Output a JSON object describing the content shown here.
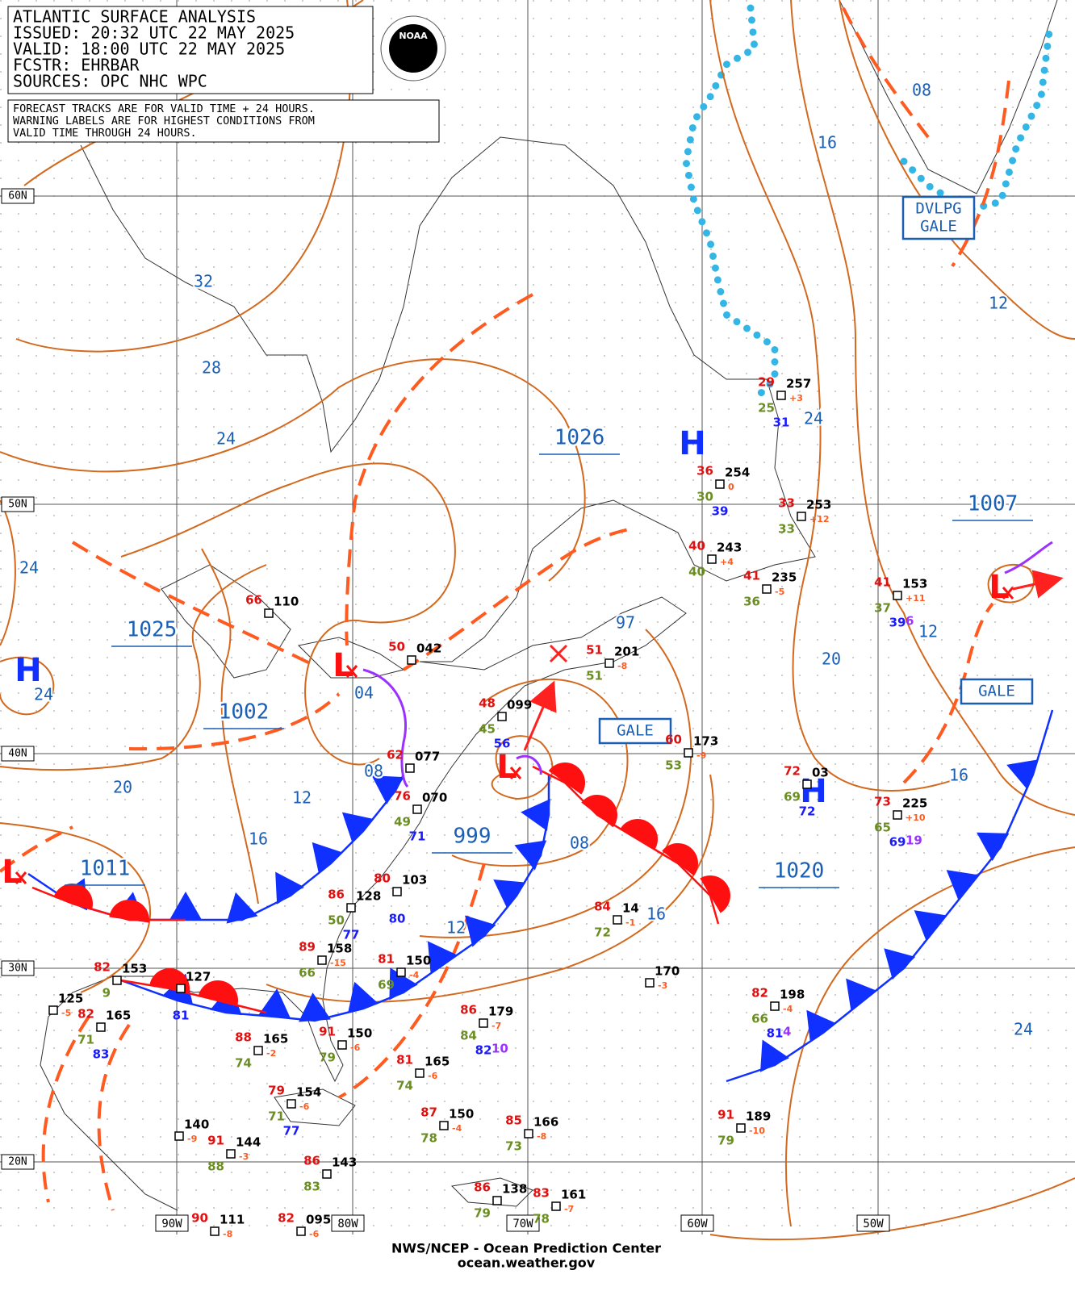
{
  "header": {
    "lines": [
      "ATLANTIC SURFACE ANALYSIS",
      "ISSUED: 20:32 UTC 22 MAY 2025",
      "VALID:  18:00 UTC 22 MAY 2025",
      "FCSTR:  EHRBAR",
      "SOURCES: OPC NHC WPC"
    ],
    "logo": "NOAA"
  },
  "notice": [
    "FORECAST TRACKS ARE FOR VALID TIME + 24 HOURS.",
    "WARNING LABELS ARE FOR HIGHEST CONDITIONS FROM",
    "VALID TIME THROUGH 24 HOURS."
  ],
  "lat_labels": [
    "60N",
    "50N",
    "40N",
    "30N",
    "20N"
  ],
  "lon_labels": [
    "90W",
    "80W",
    "70W",
    "60W",
    "50W"
  ],
  "isobar_labels": [
    "08",
    "16",
    "12",
    "32",
    "28",
    "24",
    "24",
    "24",
    "12",
    "20",
    "24",
    "04",
    "97",
    "20",
    "12",
    "08",
    "16",
    "08",
    "16",
    "16",
    "12",
    "24"
  ],
  "central_pressures": [
    "1026",
    "1007",
    "1025",
    "1002",
    "1011",
    "999",
    "1020"
  ],
  "centers": [
    "H",
    "H",
    "H",
    "L",
    "L",
    "L",
    "L"
  ],
  "warnings": [
    [
      "GALE"
    ],
    [
      "GALE"
    ],
    [
      "DVLPG",
      "GALE"
    ]
  ],
  "stations": [
    {
      "p": "257",
      "t": "29",
      "d": "25",
      "v": "31",
      "tend": "+3"
    },
    {
      "p": "254",
      "t": "36",
      "d": "30",
      "v": "39",
      "tend": "0"
    },
    {
      "p": "253",
      "t": "33",
      "d": "33",
      "tend": "+12"
    },
    {
      "p": "243",
      "t": "40",
      "d": "40",
      "tend": "+4"
    },
    {
      "p": "235",
      "t": "41",
      "d": "36",
      "tend": "-5"
    },
    {
      "p": "153",
      "t": "41",
      "d": "37",
      "v": "39",
      "x": "6",
      "tend": "+11"
    },
    {
      "p": "110",
      "t": "66"
    },
    {
      "p": "042",
      "t": "50"
    },
    {
      "p": "201",
      "t": "51",
      "d": "51",
      "tend": "-8"
    },
    {
      "p": "099",
      "t": "48",
      "d": "45",
      "v": "56"
    },
    {
      "p": "173",
      "t": "60",
      "d": "53",
      "tend": "-9"
    },
    {
      "p": "077",
      "t": "62"
    },
    {
      "p": "03",
      "t": "72",
      "d": "69",
      "v": "72"
    },
    {
      "p": "225",
      "t": "73",
      "d": "65",
      "v": "69",
      "x": "19",
      "tend": "+10"
    },
    {
      "p": "070",
      "t": "76",
      "d": "49",
      "v": "71"
    },
    {
      "p": "103",
      "t": "80",
      "v": "80"
    },
    {
      "p": "128",
      "t": "86",
      "d": "50",
      "v": "77"
    },
    {
      "p": "14",
      "t": "84",
      "d": "72",
      "tend": "-1"
    },
    {
      "p": "158",
      "t": "89",
      "d": "66",
      "tend": "-15"
    },
    {
      "p": "150",
      "t": "81",
      "d": "69",
      "tend": "-4"
    },
    {
      "p": "170",
      "tend": "-3"
    },
    {
      "p": "153",
      "t": "82",
      "d": "9"
    },
    {
      "p": "127",
      "v": "81"
    },
    {
      "p": "125",
      "tend": "-5"
    },
    {
      "p": "198",
      "t": "82",
      "d": "66",
      "v": "81",
      "x": "4",
      "tend": "-4"
    },
    {
      "p": "165",
      "t": "82",
      "d": "71",
      "v": "83"
    },
    {
      "p": "179",
      "t": "86",
      "d": "84",
      "v": "82",
      "x": "10",
      "tend": "-7"
    },
    {
      "p": "165",
      "t": "88",
      "d": "74",
      "tend": "-2"
    },
    {
      "p": "150",
      "t": "91",
      "d": "79",
      "tend": "-6"
    },
    {
      "p": "165",
      "t": "81",
      "d": "74",
      "tend": "-6"
    },
    {
      "p": "154",
      "t": "79",
      "d": "71",
      "v": "77",
      "tend": "-6"
    },
    {
      "p": "150",
      "t": "87",
      "d": "78",
      "tend": "-4"
    },
    {
      "p": "166",
      "t": "85",
      "d": "73",
      "tend": "-8"
    },
    {
      "p": "189",
      "t": "91",
      "d": "79",
      "tend": "-10"
    },
    {
      "p": "140",
      "tend": "-9"
    },
    {
      "p": "144",
      "t": "91",
      "d": "88",
      "tend": "-3"
    },
    {
      "p": "143",
      "t": "86",
      "d": "83"
    },
    {
      "p": "138",
      "t": "86",
      "d": "79"
    },
    {
      "p": "161",
      "t": "83",
      "d": "78",
      "tend": "-7"
    },
    {
      "p": "111",
      "t": "90",
      "tend": "-8"
    },
    {
      "p": "095",
      "t": "82",
      "tend": "-6"
    }
  ],
  "footer": [
    "NWS/NCEP - Ocean Prediction Center",
    "ocean.weather.gov"
  ]
}
